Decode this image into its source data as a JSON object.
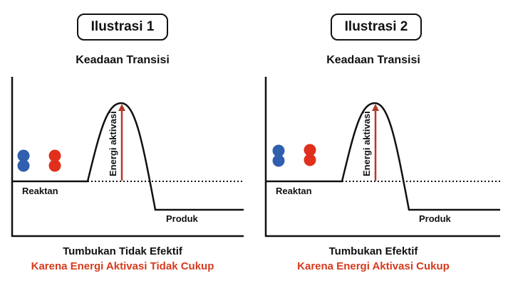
{
  "colors": {
    "molecule_blue": "#2f5fae",
    "molecule_red": "#e0301c",
    "arrow": "#b23a2a",
    "caption_accent": "#d63a1c"
  },
  "panels": [
    {
      "illustration_label": "Ilustrasi 1",
      "subtitle": "Keadaan Transisi",
      "arrow_label": "Energi aktivasi",
      "reactant_label": "Reaktan",
      "product_label": "Produk",
      "caption_main": "Tumbukan Tidak Efektif",
      "caption_sub": "Karena Energi Aktivasi Tidak Cukup"
    },
    {
      "illustration_label": "Ilustrasi 2",
      "subtitle": "Keadaan Transisi",
      "arrow_label": "Energi aktivasi",
      "reactant_label": "Reaktan",
      "product_label": "Produk",
      "caption_main": "Tumbukan Efektif",
      "caption_sub": "Karena Energi Aktivasi Cukup"
    }
  ]
}
